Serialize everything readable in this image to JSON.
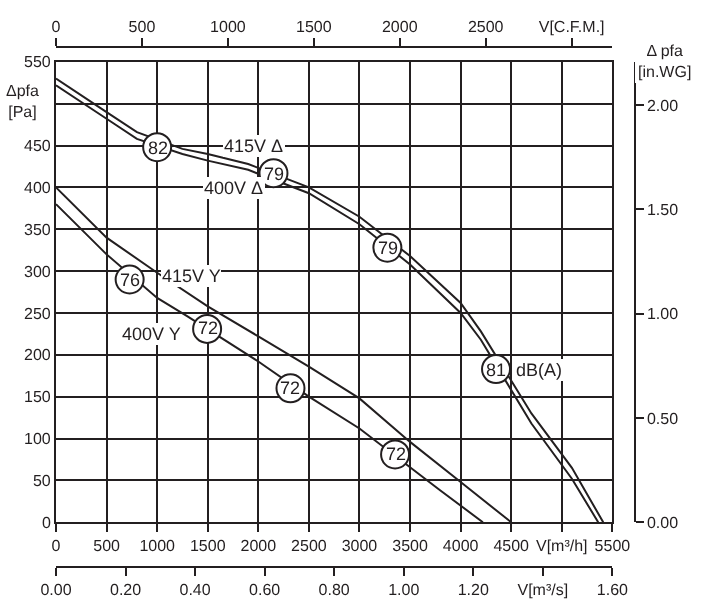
{
  "chart_data": {
    "type": "line",
    "xlabel": null,
    "ylabel": "Δpfa\n[Pa]",
    "y2label": "Δ pfa\n[in.WG]",
    "xlim": [
      0,
      5500
    ],
    "xticks": [
      0,
      500,
      1000,
      1500,
      2000,
      2500,
      3000,
      3500,
      4000,
      4500,
      {
        "value": 5000,
        "label": "V[m³/h]"
      },
      5500
    ],
    "x2lim": [
      0,
      3237
    ],
    "x2ticks": [
      0,
      500,
      1000,
      1500,
      2000,
      2500,
      {
        "value": 3000,
        "label": "V[C.F.M.]"
      }
    ],
    "ylim": [
      0,
      550
    ],
    "yticks": [
      0,
      50,
      100,
      150,
      200,
      250,
      300,
      350,
      400,
      450,
      {
        "value": 500,
        "label": null
      },
      550
    ],
    "y2lim": [
      0,
      2.208
    ],
    "y2ticks": [
      {
        "value": 0,
        "label": "0.00"
      },
      {
        "value": 0.5,
        "label": "0.50"
      },
      {
        "value": 1.0,
        "label": "1.00"
      },
      {
        "value": 1.5,
        "label": "1.50"
      },
      {
        "value": 2.0,
        "label": "2.00"
      }
    ],
    "grid": true,
    "marker": "none",
    "line_style": "solid",
    "series": [
      {
        "color": "#231f20",
        "x": [
          0,
          500,
          800,
          1250,
          1500,
          1900,
          2500,
          3000,
          3500,
          4000,
          4200,
          4700,
          5100,
          5410
        ],
        "values": [
          530,
          490,
          466,
          446,
          440,
          428,
          400,
          365,
          318,
          262,
          228,
          130,
          65,
          0
        ]
      },
      {
        "color": "#231f20",
        "x": [
          0,
          500,
          800,
          1250,
          1500,
          1900,
          2500,
          3000,
          3500,
          4000,
          4200,
          4700,
          5100,
          5360
        ],
        "values": [
          522,
          482,
          458,
          440,
          432,
          421,
          393,
          356,
          308,
          250,
          218,
          118,
          52,
          0
        ]
      },
      {
        "color": "#231f20",
        "x": [
          0,
          500,
          1000,
          1500,
          2000,
          2500,
          3000,
          3500,
          4000,
          4500
        ],
        "values": [
          400,
          340,
          298,
          258,
          222,
          186,
          148,
          96,
          48,
          0
        ]
      },
      {
        "color": "#231f20",
        "x": [
          0,
          500,
          1000,
          1300,
          2000,
          2500,
          3000,
          3800,
          4220
        ],
        "values": [
          380,
          320,
          268,
          246,
          192,
          150,
          112,
          38,
          0
        ]
      }
    ],
    "annotations": [
      "0.00",
      "0.20",
      "0.40",
      "0.60",
      "0.80",
      "1.00",
      "1.20",
      "V[m³/s]",
      "1.60",
      {
        "text": "82",
        "x": 1000,
        "y": 448
      },
      {
        "text": "79",
        "x": 2150,
        "y": 417
      },
      {
        "text": "79",
        "x": 3276,
        "y": 328
      },
      {
        "text": "81",
        "x": 4350,
        "y": 183
      },
      {
        "text": "dB(A)",
        "x": 4780,
        "y": 183
      },
      {
        "text": "76",
        "x": 728,
        "y": 290
      },
      {
        "text": "72",
        "x": 1494,
        "y": 231
      },
      {
        "text": "72",
        "x": 2318,
        "y": 160
      },
      {
        "text": "72",
        "x": 3352,
        "y": 81
      },
      {
        "text": "415V Δ",
        "x": 1954,
        "y": 450
      },
      {
        "text": "400V Δ",
        "x": 1760,
        "y": 400
      },
      {
        "text": "415V Y",
        "x": 1330,
        "y": 293
      },
      {
        "text": "400V Y",
        "x": 940,
        "y": 224
      }
    ]
  }
}
